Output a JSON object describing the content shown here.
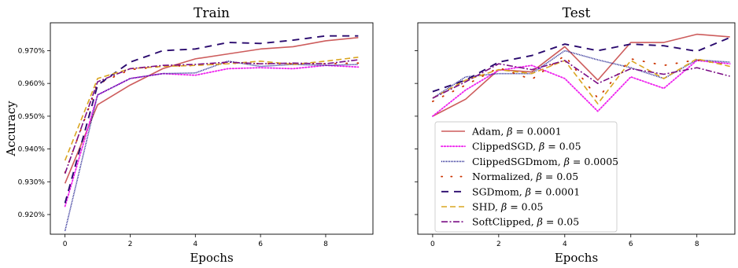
{
  "chart_data": [
    {
      "type": "line",
      "title": "Train",
      "xlabel": "Epochs",
      "ylabel": "Accuracy",
      "xlim": [
        -0.45,
        9.45
      ],
      "ylim": [
        0.914,
        0.9785
      ],
      "xticks": [
        0,
        2,
        4,
        6,
        8
      ],
      "yticks": [
        0.92,
        0.93,
        0.94,
        0.95,
        0.96,
        0.97
      ],
      "ytick_labels": [
        "0.920%",
        "0.930%",
        "0.940%",
        "0.950%",
        "0.960%",
        "0.970%"
      ],
      "x": [
        0,
        1,
        2,
        3,
        4,
        5,
        6,
        7,
        8,
        9
      ],
      "series": [
        {
          "name": "Adam, $\\beta = 0.0001$",
          "color": "#cd5c5c",
          "dash": "solid",
          "values": [
            0.9295,
            0.9535,
            0.9595,
            0.9645,
            0.9675,
            0.969,
            0.9705,
            0.9712,
            0.973,
            0.974
          ]
        },
        {
          "name": "ClippedSGD, $\\beta = 0.05$",
          "color": "#ee22ee",
          "dash": "dotted",
          "values": [
            0.9225,
            0.9565,
            0.9615,
            0.963,
            0.9625,
            0.9645,
            0.9648,
            0.9645,
            0.9655,
            0.965
          ]
        },
        {
          "name": "ClippedSGDmom, $\\beta = 0.0005$",
          "color": "#1a1a8c",
          "dash": "dense-dotted",
          "values": [
            0.915,
            0.9565,
            0.9615,
            0.963,
            0.9632,
            0.9668,
            0.9652,
            0.9658,
            0.9655,
            0.9658
          ]
        },
        {
          "name": "Normalized, $\\beta = 0.05$",
          "color": "#cc3300",
          "dash": "sparse-dots",
          "values": [
            0.9328,
            0.9598,
            0.9642,
            0.9652,
            0.9655,
            0.9662,
            0.966,
            0.966,
            0.966,
            0.9662
          ]
        },
        {
          "name": "SGDmom, $\\beta = 0.0001$",
          "color": "#2a0a6e",
          "dash": "long-dash",
          "values": [
            0.9235,
            0.9595,
            0.9665,
            0.97,
            0.9705,
            0.9725,
            0.9722,
            0.9732,
            0.9745,
            0.9745
          ]
        },
        {
          "name": "SHD, $\\beta = 0.05$",
          "color": "#daa520",
          "dash": "dashed",
          "values": [
            0.9365,
            0.9615,
            0.9645,
            0.9652,
            0.9655,
            0.966,
            0.9668,
            0.9658,
            0.9668,
            0.968
          ]
        },
        {
          "name": "SoftClipped, $\\beta = 0.05$",
          "color": "#7a0d85",
          "dash": "dashdot",
          "values": [
            0.9325,
            0.9605,
            0.9645,
            0.9655,
            0.9658,
            0.9665,
            0.966,
            0.9662,
            0.966,
            0.9672
          ]
        }
      ]
    },
    {
      "type": "line",
      "title": "Test",
      "xlabel": "Epochs",
      "ylabel": "",
      "xlim": [
        -0.45,
        9.15
      ],
      "ylim": [
        0.914,
        0.9785
      ],
      "xticks": [
        0,
        2,
        4,
        6,
        8
      ],
      "x": [
        0,
        1,
        2,
        3,
        4,
        5,
        6,
        7,
        8,
        9
      ],
      "legend": "lower-left",
      "series": [
        {
          "name": "Adam, $\\beta = 0.0001$",
          "color": "#cd5c5c",
          "dash": "solid",
          "values": [
            0.95,
            0.9552,
            0.9642,
            0.9635,
            0.9712,
            0.961,
            0.9725,
            0.9725,
            0.975,
            0.9742
          ]
        },
        {
          "name": "ClippedSGD, $\\beta = 0.05$",
          "color": "#ee22ee",
          "dash": "dotted",
          "values": [
            0.95,
            0.958,
            0.964,
            0.9655,
            0.9615,
            0.9515,
            0.962,
            0.9585,
            0.967,
            0.966
          ]
        },
        {
          "name": "ClippedSGDmom, $\\beta = 0.0005$",
          "color": "#1a1a8c",
          "dash": "dense-dotted",
          "values": [
            0.9555,
            0.962,
            0.963,
            0.963,
            0.97,
            0.9672,
            0.9648,
            0.9615,
            0.9672,
            0.9665
          ]
        },
        {
          "name": "Normalized, $\\beta = 0.05$",
          "color": "#cc3300",
          "dash": "sparse-dots",
          "values": [
            0.9545,
            0.9595,
            0.9648,
            0.9612,
            0.9685,
            0.9555,
            0.9675,
            0.9655,
            0.9672,
            0.9655
          ]
        },
        {
          "name": "SGDmom, $\\beta = 0.0001$",
          "color": "#2a0a6e",
          "dash": "long-dash",
          "values": [
            0.9575,
            0.961,
            0.9665,
            0.9685,
            0.972,
            0.97,
            0.972,
            0.9715,
            0.9698,
            0.974
          ]
        },
        {
          "name": "SHD, $\\beta = 0.05$",
          "color": "#daa520",
          "dash": "dashed",
          "values": [
            0.9555,
            0.961,
            0.9642,
            0.963,
            0.967,
            0.9538,
            0.967,
            0.9615,
            0.9675,
            0.9652
          ]
        },
        {
          "name": "SoftClipped, $\\beta = 0.05$",
          "color": "#7a0d85",
          "dash": "dashdot",
          "values": [
            0.9555,
            0.9605,
            0.966,
            0.9642,
            0.967,
            0.96,
            0.9645,
            0.9628,
            0.9648,
            0.9622
          ]
        }
      ]
    }
  ]
}
